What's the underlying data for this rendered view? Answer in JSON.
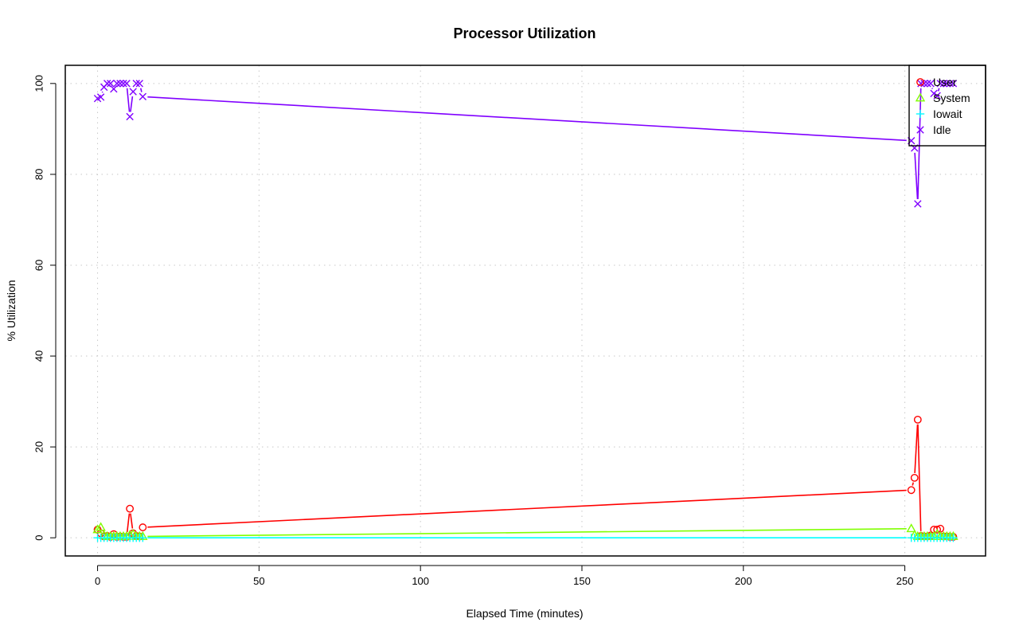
{
  "chart_data": {
    "type": "line",
    "title": "Processor Utilization",
    "xlabel": "Elapsed Time (minutes)",
    "ylabel": "% Utilization",
    "xlim": [
      -10,
      275
    ],
    "ylim": [
      -4,
      104
    ],
    "xticks": [
      0,
      50,
      100,
      150,
      200,
      250
    ],
    "yticks": [
      0,
      20,
      40,
      60,
      80,
      100
    ],
    "grid": true,
    "legend_position": "top-right",
    "x": [
      0,
      1,
      2,
      3,
      4,
      5,
      6,
      7,
      8,
      9,
      10,
      11,
      12,
      13,
      14,
      252,
      253,
      254,
      255,
      256,
      257,
      258,
      259,
      260,
      261,
      262,
      263,
      264,
      265
    ],
    "series": [
      {
        "name": "User",
        "color": "#ff0000",
        "marker": "circle",
        "values": [
          1.8,
          1.0,
          0.3,
          0.4,
          0.2,
          0.8,
          0.2,
          0.3,
          0.2,
          0.2,
          6.4,
          1.0,
          0.4,
          0.3,
          2.3,
          10.5,
          13.2,
          26.0,
          0.4,
          0.3,
          0.3,
          0.5,
          1.8,
          1.8,
          2.0,
          0.3,
          0.3,
          0.2,
          0.2
        ]
      },
      {
        "name": "System",
        "color": "#80ff00",
        "marker": "triangle",
        "values": [
          1.8,
          2.3,
          0.5,
          0.3,
          0.3,
          0.3,
          0.3,
          0.3,
          0.3,
          0.3,
          0.6,
          0.8,
          0.3,
          0.3,
          0.3,
          2.0,
          0.6,
          0.3,
          0.3,
          0.3,
          0.3,
          0.3,
          0.3,
          0.8,
          0.3,
          0.3,
          0.3,
          0.3,
          0.3
        ]
      },
      {
        "name": "Iowait",
        "color": "#00ffff",
        "marker": "plus",
        "values": [
          0,
          0,
          0,
          0,
          0,
          0,
          0,
          0,
          0,
          0,
          0,
          0,
          0,
          0,
          0,
          0,
          0,
          0,
          0,
          0,
          0,
          0,
          0,
          0,
          0,
          0,
          0,
          0,
          0
        ]
      },
      {
        "name": "Idle",
        "color": "#8000ff",
        "marker": "cross",
        "values": [
          96.7,
          97.0,
          99.2,
          100,
          100,
          98.8,
          100,
          100,
          100,
          100,
          92.7,
          98.2,
          100,
          100,
          97.1,
          87.4,
          85.8,
          73.5,
          100,
          100,
          100,
          100,
          97.8,
          97.3,
          100,
          100,
          100,
          100,
          100
        ]
      }
    ]
  }
}
